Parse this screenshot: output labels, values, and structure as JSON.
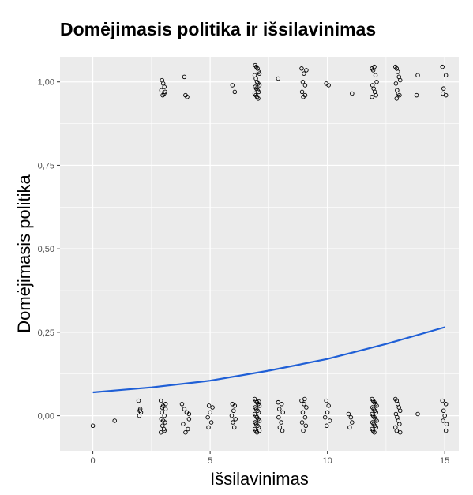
{
  "chart_data": {
    "type": "scatter",
    "title": "Domėjimasis politika ir išsilavinimas",
    "xlabel": "Išsilavinimas",
    "ylabel": "Domėjimasis politika",
    "xlim": [
      -1.4,
      15.6
    ],
    "ylim": [
      -0.105,
      1.075
    ],
    "x_ticks": [
      0,
      5,
      10,
      15
    ],
    "x_tick_labels": [
      "0",
      "5",
      "10",
      "15"
    ],
    "y_ticks": [
      0,
      0.25,
      0.5,
      0.75,
      1.0
    ],
    "y_tick_labels": [
      "0,00",
      "0,25",
      "0,50",
      "0,75",
      "1,00"
    ],
    "grid": true,
    "panel_background": "#ebebeb",
    "grid_color": "#ffffff",
    "point_color": "#000000",
    "fit_color": "#1f5fd6",
    "series": [
      {
        "kind": "points",
        "points": [
          [
            0.0,
            -0.03
          ],
          [
            0.93,
            -0.015
          ],
          [
            1.95,
            0.045
          ],
          [
            2.0,
            0.015
          ],
          [
            2.05,
            0.01
          ],
          [
            1.98,
            0.0
          ],
          [
            2.02,
            0.02
          ],
          [
            2.9,
            0.045
          ],
          [
            3.0,
            0.03
          ],
          [
            3.1,
            0.02
          ],
          [
            2.95,
            0.01
          ],
          [
            3.05,
            0.0
          ],
          [
            2.92,
            -0.01
          ],
          [
            3.08,
            -0.02
          ],
          [
            2.97,
            -0.03
          ],
          [
            3.03,
            -0.04
          ],
          [
            2.9,
            -0.05
          ],
          [
            3.1,
            0.035
          ],
          [
            3.0,
            -0.015
          ],
          [
            2.95,
            0.025
          ],
          [
            3.05,
            -0.045
          ],
          [
            3.8,
            0.035
          ],
          [
            3.9,
            0.02
          ],
          [
            4.0,
            0.01
          ],
          [
            4.1,
            -0.01
          ],
          [
            3.85,
            -0.025
          ],
          [
            4.05,
            -0.04
          ],
          [
            3.95,
            -0.05
          ],
          [
            4.1,
            0.005
          ],
          [
            4.95,
            0.03
          ],
          [
            5.1,
            0.025
          ],
          [
            5.0,
            0.01
          ],
          [
            4.9,
            -0.005
          ],
          [
            5.05,
            -0.02
          ],
          [
            4.93,
            -0.035
          ],
          [
            5.95,
            0.035
          ],
          [
            6.05,
            0.03
          ],
          [
            6.0,
            0.015
          ],
          [
            5.92,
            0.0
          ],
          [
            6.08,
            -0.01
          ],
          [
            5.97,
            -0.02
          ],
          [
            6.03,
            -0.035
          ],
          [
            6.9,
            0.05
          ],
          [
            6.95,
            0.045
          ],
          [
            7.0,
            0.04
          ],
          [
            7.05,
            0.035
          ],
          [
            7.1,
            0.03
          ],
          [
            6.92,
            0.025
          ],
          [
            6.97,
            0.02
          ],
          [
            7.02,
            0.015
          ],
          [
            7.07,
            0.01
          ],
          [
            6.9,
            0.005
          ],
          [
            6.95,
            0.0
          ],
          [
            7.0,
            -0.005
          ],
          [
            7.05,
            -0.01
          ],
          [
            7.1,
            -0.015
          ],
          [
            6.92,
            -0.02
          ],
          [
            6.97,
            -0.025
          ],
          [
            7.02,
            -0.03
          ],
          [
            7.07,
            -0.035
          ],
          [
            6.9,
            -0.04
          ],
          [
            6.95,
            -0.045
          ],
          [
            7.0,
            -0.05
          ],
          [
            7.1,
            -0.045
          ],
          [
            7.08,
            0.042
          ],
          [
            7.9,
            0.04
          ],
          [
            8.05,
            0.035
          ],
          [
            7.95,
            0.02
          ],
          [
            8.1,
            0.01
          ],
          [
            7.92,
            -0.005
          ],
          [
            8.03,
            -0.02
          ],
          [
            7.97,
            -0.035
          ],
          [
            8.08,
            -0.045
          ],
          [
            8.9,
            0.045
          ],
          [
            9.0,
            0.035
          ],
          [
            9.1,
            0.025
          ],
          [
            8.95,
            0.01
          ],
          [
            9.05,
            -0.005
          ],
          [
            8.92,
            -0.02
          ],
          [
            9.08,
            -0.03
          ],
          [
            8.97,
            -0.045
          ],
          [
            9.03,
            0.05
          ],
          [
            9.95,
            0.045
          ],
          [
            10.05,
            0.03
          ],
          [
            10.0,
            0.01
          ],
          [
            9.9,
            -0.005
          ],
          [
            10.1,
            -0.015
          ],
          [
            9.97,
            -0.03
          ],
          [
            10.9,
            0.005
          ],
          [
            11.0,
            -0.005
          ],
          [
            11.05,
            -0.02
          ],
          [
            10.95,
            -0.035
          ],
          [
            11.9,
            0.05
          ],
          [
            11.95,
            0.045
          ],
          [
            12.0,
            0.04
          ],
          [
            12.05,
            0.035
          ],
          [
            12.1,
            0.03
          ],
          [
            11.92,
            0.025
          ],
          [
            11.97,
            0.02
          ],
          [
            12.02,
            0.015
          ],
          [
            12.07,
            0.01
          ],
          [
            11.9,
            0.005
          ],
          [
            11.95,
            0.0
          ],
          [
            12.0,
            -0.005
          ],
          [
            12.05,
            -0.01
          ],
          [
            12.1,
            -0.015
          ],
          [
            11.92,
            -0.02
          ],
          [
            11.97,
            -0.025
          ],
          [
            12.02,
            -0.03
          ],
          [
            12.07,
            -0.035
          ],
          [
            11.9,
            -0.04
          ],
          [
            11.95,
            -0.045
          ],
          [
            12.0,
            -0.05
          ],
          [
            12.9,
            0.05
          ],
          [
            12.95,
            0.045
          ],
          [
            13.0,
            0.035
          ],
          [
            13.05,
            0.025
          ],
          [
            13.1,
            0.015
          ],
          [
            12.92,
            0.005
          ],
          [
            12.97,
            -0.005
          ],
          [
            13.02,
            -0.015
          ],
          [
            13.07,
            -0.025
          ],
          [
            12.9,
            -0.035
          ],
          [
            12.95,
            -0.045
          ],
          [
            13.1,
            -0.05
          ],
          [
            13.85,
            0.005
          ],
          [
            14.9,
            0.045
          ],
          [
            15.05,
            0.035
          ],
          [
            14.95,
            0.015
          ],
          [
            15.0,
            0.0
          ],
          [
            14.93,
            -0.015
          ],
          [
            15.08,
            -0.025
          ],
          [
            15.05,
            -0.045
          ],
          [
            2.95,
            1.005
          ],
          [
            3.0,
            0.995
          ],
          [
            3.05,
            0.985
          ],
          [
            2.92,
            0.975
          ],
          [
            3.08,
            0.97
          ],
          [
            2.98,
            0.96
          ],
          [
            3.04,
            0.965
          ],
          [
            3.9,
            1.015
          ],
          [
            3.95,
            0.96
          ],
          [
            4.02,
            0.955
          ],
          [
            5.95,
            0.99
          ],
          [
            6.05,
            0.97
          ],
          [
            6.92,
            1.05
          ],
          [
            6.97,
            1.045
          ],
          [
            7.02,
            1.04
          ],
          [
            7.07,
            1.03
          ],
          [
            6.9,
            1.02
          ],
          [
            6.95,
            1.01
          ],
          [
            7.0,
            1.0
          ],
          [
            7.05,
            0.995
          ],
          [
            7.1,
            0.99
          ],
          [
            6.92,
            0.985
          ],
          [
            6.97,
            0.98
          ],
          [
            7.02,
            0.975
          ],
          [
            7.07,
            0.97
          ],
          [
            6.9,
            0.965
          ],
          [
            6.95,
            0.96
          ],
          [
            7.0,
            0.955
          ],
          [
            7.05,
            0.95
          ],
          [
            7.1,
            1.025
          ],
          [
            7.9,
            1.01
          ],
          [
            8.9,
            1.04
          ],
          [
            9.0,
            1.025
          ],
          [
            9.1,
            1.035
          ],
          [
            8.95,
            1.0
          ],
          [
            9.05,
            0.99
          ],
          [
            8.92,
            0.97
          ],
          [
            9.05,
            0.96
          ],
          [
            8.97,
            0.955
          ],
          [
            9.95,
            0.995
          ],
          [
            10.05,
            0.99
          ],
          [
            11.05,
            0.965
          ],
          [
            11.9,
            1.04
          ],
          [
            11.95,
            1.035
          ],
          [
            12.05,
            1.02
          ],
          [
            12.1,
            1.0
          ],
          [
            11.92,
            0.99
          ],
          [
            11.97,
            0.98
          ],
          [
            12.02,
            0.97
          ],
          [
            12.07,
            0.96
          ],
          [
            11.9,
            0.955
          ],
          [
            12.0,
            1.045
          ],
          [
            12.9,
            1.045
          ],
          [
            12.95,
            1.04
          ],
          [
            13.0,
            1.03
          ],
          [
            13.05,
            1.015
          ],
          [
            13.1,
            1.005
          ],
          [
            12.92,
            0.995
          ],
          [
            12.97,
            0.975
          ],
          [
            13.02,
            0.965
          ],
          [
            13.07,
            0.96
          ],
          [
            12.95,
            0.95
          ],
          [
            13.85,
            1.02
          ],
          [
            13.8,
            0.96
          ],
          [
            14.9,
            1.045
          ],
          [
            15.05,
            1.02
          ],
          [
            14.95,
            0.98
          ],
          [
            14.92,
            0.965
          ],
          [
            15.05,
            0.96
          ]
        ]
      },
      {
        "kind": "fit",
        "x": [
          0,
          2.5,
          5,
          7.5,
          10,
          12.5,
          15
        ],
        "y": [
          0.07,
          0.085,
          0.105,
          0.135,
          0.17,
          0.215,
          0.265
        ]
      }
    ]
  }
}
